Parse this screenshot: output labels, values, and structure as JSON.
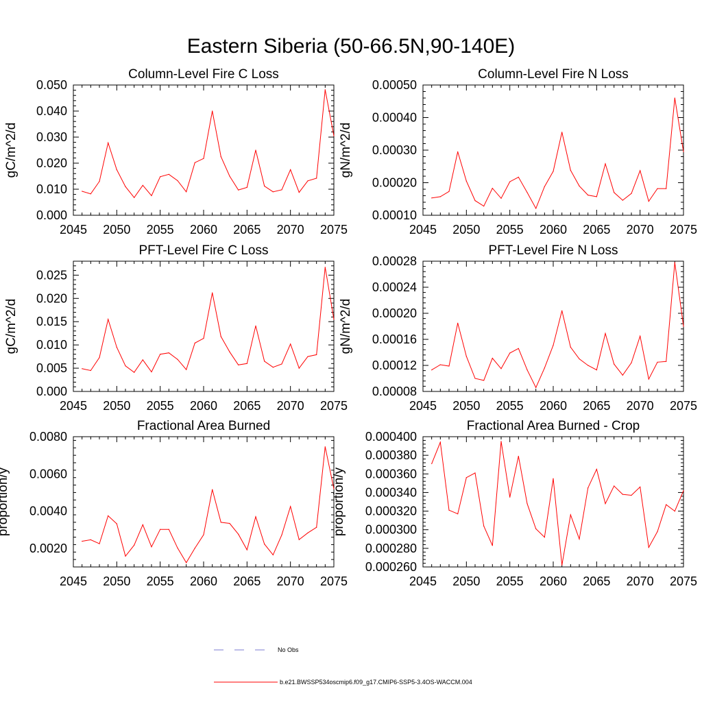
{
  "figure_title": "Eastern Siberia (50-66.5N,90-140E)",
  "colors": {
    "series": "#ff0000",
    "obs": "#7b7bd0",
    "axis": "#000000"
  },
  "legend": [
    {
      "label": "No Obs",
      "style": "dashed",
      "color": "#7b7bd0"
    },
    {
      "label": "b.e21.BWSSP534oscmip6.f09_g17.CMIP6-SSP5-3.4OS-WACCM.004",
      "style": "solid",
      "color": "#ff0000"
    }
  ],
  "chart_data": [
    {
      "type": "line",
      "title": "Column-Level Fire C Loss",
      "xlabel": "",
      "ylabel": "gC/m^2/d",
      "xlim": [
        2045,
        2075
      ],
      "ylim": [
        0,
        0.05
      ],
      "xticks": [
        2045,
        2050,
        2055,
        2060,
        2065,
        2070,
        2075
      ],
      "yticks": [
        0,
        0.01,
        0.02,
        0.03,
        0.04,
        0.05
      ],
      "ytick_labels": [
        "0.000",
        "0.010",
        "0.020",
        "0.030",
        "0.040",
        "0.050"
      ],
      "x": [
        2046,
        2047,
        2048,
        2049,
        2050,
        2051,
        2052,
        2053,
        2054,
        2055,
        2056,
        2057,
        2058,
        2059,
        2060,
        2061,
        2062,
        2063,
        2064,
        2065,
        2066,
        2067,
        2068,
        2069,
        2070,
        2071,
        2072,
        2073,
        2074,
        2075
      ],
      "series": [
        {
          "name": "b.e21.BWSSP534oscmip6.f09_g17.CMIP6-SSP5-3.4OS-WACCM.004",
          "values": [
            0.0092,
            0.0082,
            0.013,
            0.0278,
            0.0175,
            0.011,
            0.0068,
            0.0115,
            0.0075,
            0.0148,
            0.0157,
            0.0133,
            0.009,
            0.0202,
            0.0218,
            0.04,
            0.0225,
            0.015,
            0.0097,
            0.0107,
            0.025,
            0.0112,
            0.009,
            0.0098,
            0.0175,
            0.0088,
            0.0132,
            0.0142,
            0.0482,
            0.0305
          ]
        }
      ]
    },
    {
      "type": "line",
      "title": "Column-Level Fire N Loss",
      "xlabel": "",
      "ylabel": "gN/m^2/d",
      "xlim": [
        2045,
        2075
      ],
      "ylim": [
        0.0001,
        0.0005
      ],
      "xticks": [
        2045,
        2050,
        2055,
        2060,
        2065,
        2070,
        2075
      ],
      "yticks": [
        0.0001,
        0.0002,
        0.0003,
        0.0004,
        0.0005
      ],
      "ytick_labels": [
        "0.00010",
        "0.00020",
        "0.00030",
        "0.00040",
        "0.00050"
      ],
      "x": [
        2046,
        2047,
        2048,
        2049,
        2050,
        2051,
        2052,
        2053,
        2054,
        2055,
        2056,
        2057,
        2058,
        2059,
        2060,
        2061,
        2062,
        2063,
        2064,
        2065,
        2066,
        2067,
        2068,
        2069,
        2070,
        2071,
        2072,
        2073,
        2074,
        2075
      ],
      "series": [
        {
          "name": "b.e21.BWSSP534oscmip6.f09_g17.CMIP6-SSP5-3.4OS-WACCM.004",
          "values": [
            0.000153,
            0.000157,
            0.000173,
            0.000295,
            0.000205,
            0.000145,
            0.000128,
            0.000183,
            0.000152,
            0.000203,
            0.000217,
            0.00017,
            0.000121,
            0.000188,
            0.000235,
            0.000355,
            0.000238,
            0.00019,
            0.000162,
            0.000157,
            0.000258,
            0.00017,
            0.000146,
            0.000167,
            0.000237,
            0.000143,
            0.000182,
            0.000182,
            0.00046,
            0.000295
          ]
        }
      ]
    },
    {
      "type": "line",
      "title": "PFT-Level Fire C Loss",
      "xlabel": "",
      "ylabel": "gC/m^2/d",
      "xlim": [
        2045,
        2075
      ],
      "ylim": [
        0,
        0.028
      ],
      "xticks": [
        2045,
        2050,
        2055,
        2060,
        2065,
        2070,
        2075
      ],
      "yticks": [
        0,
        0.005,
        0.01,
        0.015,
        0.02,
        0.025
      ],
      "ytick_labels": [
        "0.000",
        "0.005",
        "0.010",
        "0.015",
        "0.020",
        "0.025"
      ],
      "x": [
        2046,
        2047,
        2048,
        2049,
        2050,
        2051,
        2052,
        2053,
        2054,
        2055,
        2056,
        2057,
        2058,
        2059,
        2060,
        2061,
        2062,
        2063,
        2064,
        2065,
        2066,
        2067,
        2068,
        2069,
        2070,
        2071,
        2072,
        2073,
        2074,
        2075
      ],
      "series": [
        {
          "name": "b.e21.BWSSP534oscmip6.f09_g17.CMIP6-SSP5-3.4OS-WACCM.004",
          "values": [
            0.0049,
            0.0045,
            0.0073,
            0.0155,
            0.0095,
            0.0055,
            0.0041,
            0.0068,
            0.0042,
            0.008,
            0.0083,
            0.0069,
            0.0047,
            0.0104,
            0.0114,
            0.0212,
            0.0118,
            0.0085,
            0.0057,
            0.006,
            0.0141,
            0.0065,
            0.0052,
            0.0059,
            0.0102,
            0.005,
            0.0075,
            0.0079,
            0.0267,
            0.0155
          ]
        }
      ]
    },
    {
      "type": "line",
      "title": "PFT-Level Fire N Loss",
      "xlabel": "",
      "ylabel": "gN/m^2/d",
      "xlim": [
        2045,
        2075
      ],
      "ylim": [
        8e-05,
        0.00028
      ],
      "xticks": [
        2045,
        2050,
        2055,
        2060,
        2065,
        2070,
        2075
      ],
      "yticks": [
        8e-05,
        0.00012,
        0.00016,
        0.0002,
        0.00024,
        0.00028
      ],
      "ytick_labels": [
        "0.00008",
        "0.00012",
        "0.00016",
        "0.00020",
        "0.00024",
        "0.00028"
      ],
      "x": [
        2046,
        2047,
        2048,
        2049,
        2050,
        2051,
        2052,
        2053,
        2054,
        2055,
        2056,
        2057,
        2058,
        2059,
        2060,
        2061,
        2062,
        2063,
        2064,
        2065,
        2066,
        2067,
        2068,
        2069,
        2070,
        2071,
        2072,
        2073,
        2074,
        2075
      ],
      "series": [
        {
          "name": "b.e21.BWSSP534oscmip6.f09_g17.CMIP6-SSP5-3.4OS-WACCM.004",
          "values": [
            0.000113,
            0.000121,
            0.000119,
            0.000185,
            0.000134,
            0.0001,
            9.7e-05,
            0.000131,
            0.000115,
            0.000139,
            0.000146,
            0.000113,
            8.6e-05,
            0.000116,
            0.000151,
            0.000204,
            0.000148,
            0.00013,
            0.00012,
            0.000113,
            0.000169,
            0.000122,
            0.000105,
            0.000124,
            0.000165,
            9.9e-05,
            0.000125,
            0.000126,
            0.000278,
            0.00018
          ]
        }
      ]
    },
    {
      "type": "line",
      "title": "Fractional Area Burned",
      "xlabel": "",
      "ylabel": "proportion/y",
      "xlim": [
        2045,
        2075
      ],
      "ylim": [
        0.001,
        0.008
      ],
      "xticks": [
        2045,
        2050,
        2055,
        2060,
        2065,
        2070,
        2075
      ],
      "yticks": [
        0.002,
        0.004,
        0.006,
        0.008
      ],
      "ytick_labels": [
        "0.0020",
        "0.0040",
        "0.0060",
        "0.0080"
      ],
      "x": [
        2046,
        2047,
        2048,
        2049,
        2050,
        2051,
        2052,
        2053,
        2054,
        2055,
        2056,
        2057,
        2058,
        2059,
        2060,
        2061,
        2062,
        2063,
        2064,
        2065,
        2066,
        2067,
        2068,
        2069,
        2070,
        2071,
        2072,
        2073,
        2074,
        2075
      ],
      "series": [
        {
          "name": "b.e21.BWSSP534oscmip6.f09_g17.CMIP6-SSP5-3.4OS-WACCM.004",
          "values": [
            0.00238,
            0.00246,
            0.00225,
            0.00375,
            0.00332,
            0.00158,
            0.00217,
            0.00327,
            0.00208,
            0.00302,
            0.00302,
            0.00202,
            0.00123,
            0.00201,
            0.00273,
            0.00516,
            0.0034,
            0.00334,
            0.00276,
            0.00192,
            0.0037,
            0.00223,
            0.00165,
            0.00272,
            0.00425,
            0.00247,
            0.00283,
            0.00313,
            0.00746,
            0.0052
          ]
        }
      ]
    },
    {
      "type": "line",
      "title": "Fractional Area Burned - Crop",
      "xlabel": "",
      "ylabel": "proportion/y",
      "xlim": [
        2045,
        2075
      ],
      "ylim": [
        0.00026,
        0.0004
      ],
      "xticks": [
        2045,
        2050,
        2055,
        2060,
        2065,
        2070,
        2075
      ],
      "yticks": [
        0.00026,
        0.00028,
        0.0003,
        0.00032,
        0.00034,
        0.00036,
        0.00038,
        0.0004
      ],
      "ytick_labels": [
        "0.000260",
        "0.000280",
        "0.000300",
        "0.000320",
        "0.000340",
        "0.000360",
        "0.000380",
        "0.000400"
      ],
      "x": [
        2046,
        2047,
        2048,
        2049,
        2050,
        2051,
        2052,
        2053,
        2054,
        2055,
        2056,
        2057,
        2058,
        2059,
        2060,
        2061,
        2062,
        2063,
        2064,
        2065,
        2066,
        2067,
        2068,
        2069,
        2070,
        2071,
        2072,
        2073,
        2074,
        2075
      ],
      "series": [
        {
          "name": "b.e21.BWSSP534oscmip6.f09_g17.CMIP6-SSP5-3.4OS-WACCM.004",
          "values": [
            0.000371,
            0.000394,
            0.000321,
            0.000317,
            0.000356,
            0.000361,
            0.000304,
            0.000283,
            0.000395,
            0.000335,
            0.000379,
            0.000328,
            0.000301,
            0.000292,
            0.000355,
            0.000262,
            0.000316,
            0.00029,
            0.000345,
            0.000365,
            0.000328,
            0.000347,
            0.000338,
            0.000337,
            0.000346,
            0.000281,
            0.000298,
            0.000327,
            0.00032,
            0.000342
          ]
        }
      ]
    }
  ]
}
